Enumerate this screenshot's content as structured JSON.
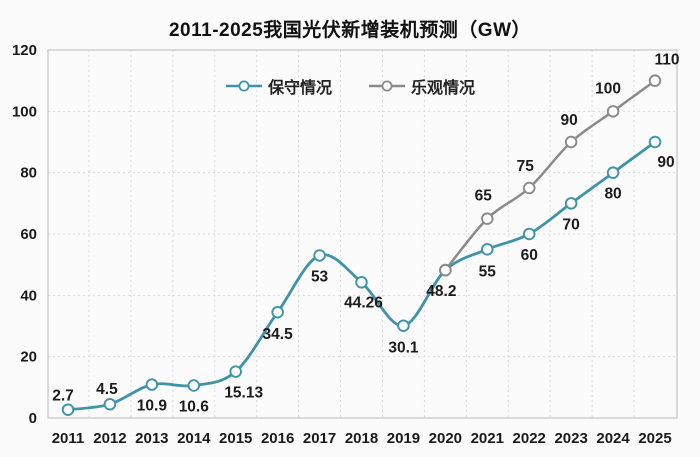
{
  "chart_data": {
    "type": "line",
    "title": "2011-2025我国光伏新增装机预测（GW）",
    "unit": "GW",
    "categories": [
      "2011",
      "2012",
      "2013",
      "2014",
      "2015",
      "2016",
      "2017",
      "2018",
      "2019",
      "2020",
      "2021",
      "2022",
      "2023",
      "2024",
      "2025"
    ],
    "series": [
      {
        "name": "保守情况",
        "color": "#3f93a8",
        "line_width": 2.8,
        "values": [
          2.7,
          4.5,
          10.9,
          10.6,
          15.13,
          34.5,
          53,
          44.26,
          30.1,
          48.2,
          55,
          60,
          70,
          80,
          90
        ],
        "labels": [
          "2.7",
          "4.5",
          "10.9",
          "10.6",
          "15.13",
          "34.5",
          "53",
          "44.26",
          "30.1",
          "48.2",
          "55",
          "60",
          "70",
          "80",
          "90"
        ],
        "label_offsets": [
          [
            -5,
            -14
          ],
          [
            -3,
            -15
          ],
          [
            0,
            21
          ],
          [
            0,
            21
          ],
          [
            8,
            21
          ],
          [
            0,
            22
          ],
          [
            0,
            21
          ],
          [
            2,
            20
          ],
          [
            0,
            22
          ],
          [
            -4,
            21
          ],
          [
            0,
            22
          ],
          [
            0,
            21
          ],
          [
            0,
            21
          ],
          [
            0,
            21
          ],
          [
            11,
            20
          ]
        ]
      },
      {
        "name": "乐观情况",
        "color": "#8a8a8a",
        "line_width": 2.5,
        "values": [
          null,
          null,
          null,
          null,
          null,
          null,
          null,
          null,
          null,
          48.2,
          65,
          75,
          90,
          100,
          110
        ],
        "labels": [
          null,
          null,
          null,
          null,
          null,
          null,
          null,
          null,
          null,
          null,
          "65",
          "75",
          "90",
          "100",
          "110"
        ],
        "label_offsets": [
          null,
          null,
          null,
          null,
          null,
          null,
          null,
          null,
          null,
          null,
          [
            -4,
            -23
          ],
          [
            -4,
            -22
          ],
          [
            -2,
            -22
          ],
          [
            -5,
            -23
          ],
          [
            12,
            -21
          ]
        ]
      }
    ],
    "ylim": [
      0,
      120
    ],
    "ytick_step": 20,
    "yticks": [
      0,
      20,
      40,
      60,
      80,
      100,
      120
    ],
    "grid": {
      "horizontal": true,
      "vertical": true,
      "style": "dashed",
      "color": "#d9d9d9",
      "vertical_at": "category-midpoints"
    },
    "plot_border_color": "#c8c8c8",
    "marker": {
      "shape": "open-circle",
      "fill": "#ffffff"
    },
    "legend_position": "top-center-inside",
    "text_color": "#1a1a1a",
    "background": "#fbfbfb"
  }
}
